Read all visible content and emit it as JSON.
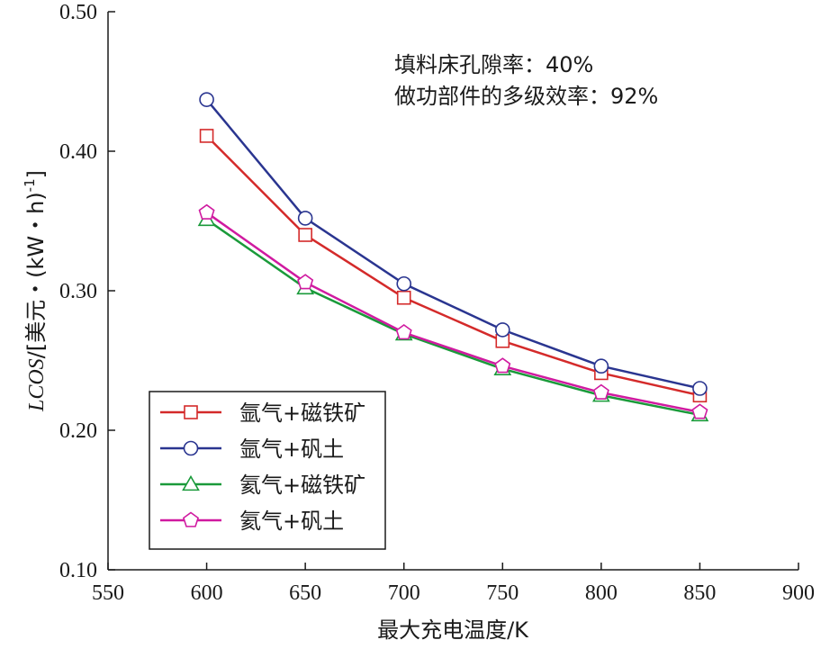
{
  "chart_data": {
    "type": "line",
    "xlabel": "最大充电温度/K",
    "ylabel": "LCOS/[美元・(kW・h)⁻¹]",
    "ylabel_parts": {
      "italic": "LCOS",
      "rest": "/[美元・(kW・h)",
      "sup": "-1",
      "close": "]"
    },
    "xlim": [
      550,
      900
    ],
    "ylim": [
      0.1,
      0.5
    ],
    "xticks": [
      550,
      600,
      650,
      700,
      750,
      800,
      850,
      900
    ],
    "yticks": [
      0.1,
      0.2,
      0.3,
      0.4,
      0.5
    ],
    "ytick_labels": [
      "0.10",
      "0.20",
      "0.30",
      "0.40",
      "0.50"
    ],
    "annotations": [
      "填料床孔隙率：40%",
      "做功部件的多级效率：92%"
    ],
    "legend_position": "lower-left",
    "x": [
      600,
      650,
      700,
      750,
      800,
      850
    ],
    "series": [
      {
        "name": "氩气+磁铁矿",
        "color": "#d42a2a",
        "marker": "square",
        "values": [
          0.411,
          0.34,
          0.295,
          0.264,
          0.241,
          0.225
        ]
      },
      {
        "name": "氩气+矾土",
        "color": "#2a3590",
        "marker": "circle",
        "values": [
          0.437,
          0.352,
          0.305,
          0.272,
          0.246,
          0.23
        ]
      },
      {
        "name": "氦气+磁铁矿",
        "color": "#1a9a3a",
        "marker": "triangle",
        "values": [
          0.351,
          0.302,
          0.269,
          0.244,
          0.225,
          0.211
        ]
      },
      {
        "name": "氦气+矾土",
        "color": "#d01aa0",
        "marker": "pentagon",
        "values": [
          0.356,
          0.306,
          0.27,
          0.246,
          0.227,
          0.213
        ]
      }
    ]
  }
}
